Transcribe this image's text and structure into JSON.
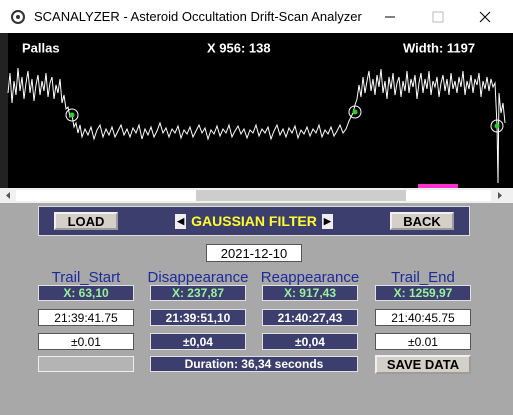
{
  "window": {
    "title": "SCANALYZER - Asteroid Occultation Drift-Scan Analyzer"
  },
  "plot": {
    "object": "Pallas",
    "cursor": "X 956:  138",
    "width_label": "Width:  1197"
  },
  "toolbar": {
    "load": "LOAD",
    "filter": "GAUSSIAN FILTER",
    "back": "BACK"
  },
  "date": "2021-12-10",
  "columns": [
    {
      "header": "Trail_Start",
      "x": "X:  63,10",
      "time": "21:39:41.75",
      "error": "±0.01"
    },
    {
      "header": "Disappearance",
      "x": "X:  237,87",
      "time": "21:39:51,10",
      "error": "±0,04"
    },
    {
      "header": "Reappearance",
      "x": "X:  917,43",
      "time": "21:40:27,43",
      "error": "±0,04"
    },
    {
      "header": "Trail_End",
      "x": "X:  1259,97",
      "time": "21:40:45.75",
      "error": "±0.01"
    }
  ],
  "duration": "Duration:  36,34  seconds",
  "save": "SAVE DATA"
}
